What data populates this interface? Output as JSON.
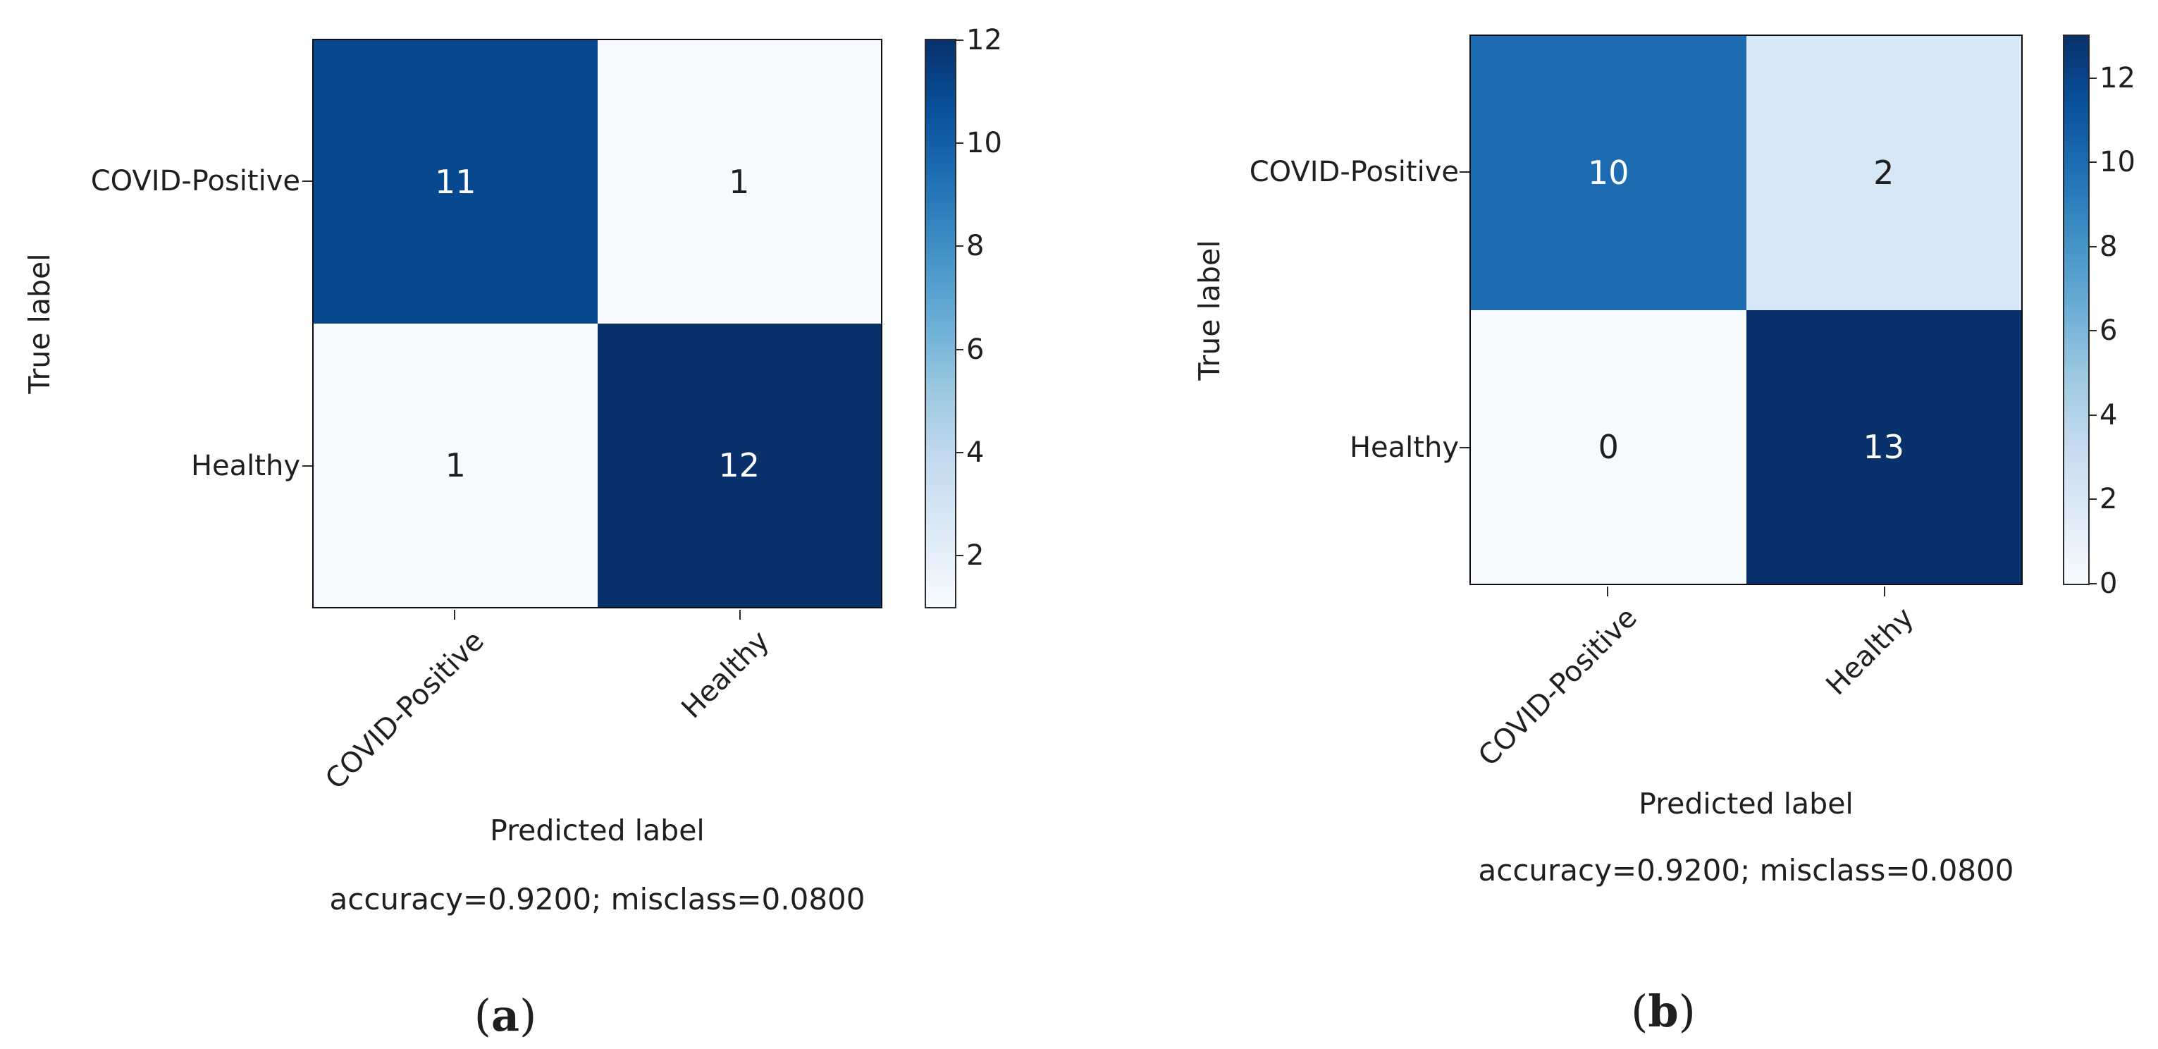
{
  "figure": {
    "background": "#ffffff",
    "colormap": {
      "name": "Blues",
      "stops_bottom_to_top": [
        "#F7FBFF",
        "#DEEBF7",
        "#C6DBEF",
        "#9ECAE1",
        "#6BAED6",
        "#4292C6",
        "#2171B5",
        "#08519C",
        "#08306B"
      ]
    },
    "charts": [
      {
        "id": "a",
        "caption": {
          "open": "(",
          "letter": "a",
          "close": ")"
        },
        "y_axis_label": "True label",
        "x_axis_label": "Predicted label",
        "footer": "accuracy=0.9200; misclass=0.0800",
        "row_labels": [
          "COVID-Positive",
          "Healthy"
        ],
        "col_labels": [
          "COVID-Positive",
          "Healthy"
        ],
        "cells": [
          {
            "row": "COVID-Positive",
            "col": "COVID-Positive",
            "value": "11",
            "color": "#08488F",
            "text_color": "#ffffff"
          },
          {
            "row": "COVID-Positive",
            "col": "Healthy",
            "value": "1",
            "color": "#F7FBFF",
            "text_color": "#1f1f1f"
          },
          {
            "row": "Healthy",
            "col": "COVID-Positive",
            "value": "1",
            "color": "#F7FBFF",
            "text_color": "#1f1f1f"
          },
          {
            "row": "Healthy",
            "col": "Healthy",
            "value": "12",
            "color": "#08306B",
            "text_color": "#ffffff"
          }
        ],
        "colorbar": {
          "vmin": 1,
          "vmax": 12,
          "ticks": [
            2,
            4,
            6,
            8,
            10,
            12
          ]
        }
      },
      {
        "id": "b",
        "caption": {
          "open": "(",
          "letter": "b",
          "close": ")"
        },
        "y_axis_label": "True label",
        "x_axis_label": "Predicted label",
        "footer": "accuracy=0.9200; misclass=0.0800",
        "row_labels": [
          "COVID-Positive",
          "Healthy"
        ],
        "col_labels": [
          "COVID-Positive",
          "Healthy"
        ],
        "cells": [
          {
            "row": "COVID-Positive",
            "col": "COVID-Positive",
            "value": "10",
            "color": "#1D6CB1",
            "text_color": "#ffffff"
          },
          {
            "row": "COVID-Positive",
            "col": "Healthy",
            "value": "2",
            "color": "#D8E7F5",
            "text_color": "#1f1f1f"
          },
          {
            "row": "Healthy",
            "col": "COVID-Positive",
            "value": "0",
            "color": "#F7FBFF",
            "text_color": "#1f1f1f"
          },
          {
            "row": "Healthy",
            "col": "Healthy",
            "value": "13",
            "color": "#08306B",
            "text_color": "#ffffff"
          }
        ],
        "colorbar": {
          "vmin": 0,
          "vmax": 13,
          "ticks": [
            0,
            2,
            4,
            6,
            8,
            10,
            12
          ]
        }
      }
    ]
  },
  "chart_data": [
    {
      "type": "heatmap",
      "subplot": "(a)",
      "x_categories": [
        "COVID-Positive",
        "Healthy"
      ],
      "y_categories": [
        "COVID-Positive",
        "Healthy"
      ],
      "values": [
        [
          11,
          1
        ],
        [
          1,
          12
        ]
      ],
      "xlabel": "Predicted label",
      "ylabel": "True label",
      "annotation": "accuracy=0.9200; misclass=0.0800",
      "colormap": "Blues",
      "colorbar_range": [
        1,
        12
      ],
      "colorbar_ticks": [
        2,
        4,
        6,
        8,
        10,
        12
      ],
      "legend_position": "colorbar-right",
      "grid": false
    },
    {
      "type": "heatmap",
      "subplot": "(b)",
      "x_categories": [
        "COVID-Positive",
        "Healthy"
      ],
      "y_categories": [
        "COVID-Positive",
        "Healthy"
      ],
      "values": [
        [
          10,
          2
        ],
        [
          0,
          13
        ]
      ],
      "xlabel": "Predicted label",
      "ylabel": "True label",
      "annotation": "accuracy=0.9200; misclass=0.0800",
      "colormap": "Blues",
      "colorbar_range": [
        0,
        13
      ],
      "colorbar_ticks": [
        0,
        2,
        4,
        6,
        8,
        10,
        12
      ],
      "legend_position": "colorbar-right",
      "grid": false
    }
  ]
}
